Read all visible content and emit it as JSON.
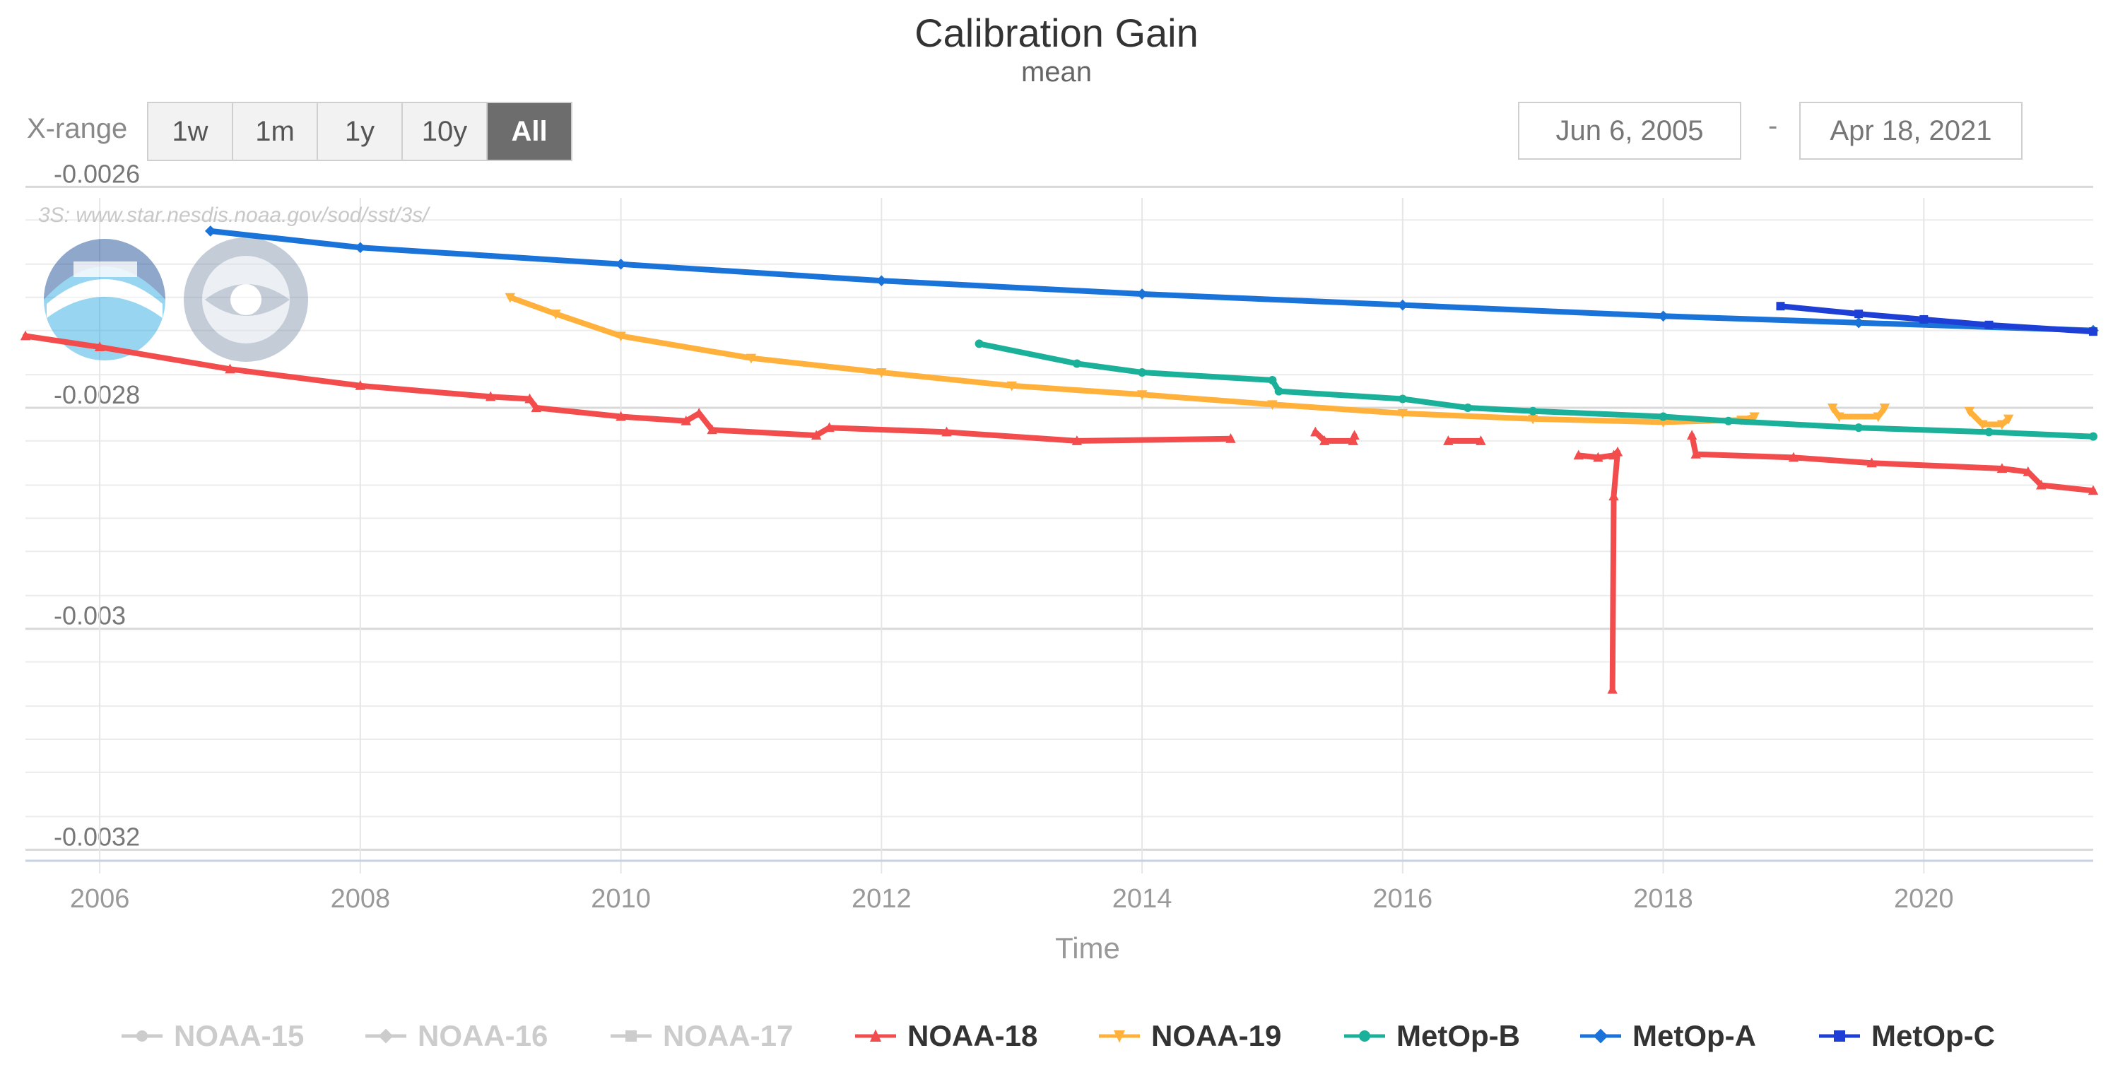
{
  "chart_data": {
    "type": "line",
    "title": "Calibration Gain",
    "subtitle": "mean",
    "xlabel": "Time",
    "ylabel": "",
    "xlim": [
      2005.43,
      2021.3
    ],
    "ylim": [
      -0.00321,
      -0.00261
    ],
    "x_ticks": [
      {
        "v": 2006,
        "label": "2006"
      },
      {
        "v": 2008,
        "label": "2008"
      },
      {
        "v": 2010,
        "label": "2010"
      },
      {
        "v": 2012,
        "label": "2012"
      },
      {
        "v": 2014,
        "label": "2014"
      },
      {
        "v": 2016,
        "label": "2016"
      },
      {
        "v": 2018,
        "label": "2018"
      },
      {
        "v": 2020,
        "label": "2020"
      }
    ],
    "y_ticks": [
      {
        "v": -0.0026,
        "label": "-0.0026"
      },
      {
        "v": -0.0028,
        "label": "-0.0028"
      },
      {
        "v": -0.003,
        "label": "-0.003"
      },
      {
        "v": -0.0032,
        "label": "-0.0032"
      }
    ],
    "y_minor_ticks": [
      -0.00257,
      -0.00263,
      -0.00267,
      -0.0027,
      -0.00273,
      -0.00277,
      -0.00283,
      -0.00287,
      -0.0029,
      -0.00293,
      -0.00297,
      -0.00303,
      -0.00307,
      -0.0031,
      -0.00313,
      -0.00317
    ],
    "watermark": "3S: www.star.nesdis.noaa.gov/sod/sst/3s/",
    "series": [
      {
        "name": "NOAA-15",
        "visible": false,
        "color": "#cccccc",
        "marker": "circle",
        "segments": []
      },
      {
        "name": "NOAA-16",
        "visible": false,
        "color": "#cccccc",
        "marker": "diamond",
        "segments": []
      },
      {
        "name": "NOAA-17",
        "visible": false,
        "color": "#cccccc",
        "marker": "square",
        "segments": []
      },
      {
        "name": "NOAA-18",
        "visible": true,
        "color": "#f24c4c",
        "marker": "triangle",
        "segments": [
          [
            [
              2005.43,
              -0.002735
            ],
            [
              2006,
              -0.002745
            ],
            [
              2007,
              -0.002765
            ],
            [
              2008,
              -0.00278
            ],
            [
              2009,
              -0.00279
            ],
            [
              2009.3,
              -0.002792
            ],
            [
              2009.35,
              -0.0028
            ],
            [
              2010,
              -0.002808
            ],
            [
              2010.5,
              -0.002812
            ],
            [
              2010.6,
              -0.002805
            ],
            [
              2010.7,
              -0.00282
            ],
            [
              2011.5,
              -0.002825
            ],
            [
              2011.6,
              -0.002818
            ],
            [
              2012.5,
              -0.002822
            ],
            [
              2013.5,
              -0.00283
            ],
            [
              2014.68,
              -0.002828
            ]
          ],
          [
            [
              2015.33,
              -0.002822
            ],
            [
              2015.4,
              -0.00283
            ],
            [
              2015.62,
              -0.00283
            ],
            [
              2015.63,
              -0.002825
            ]
          ],
          [
            [
              2016.35,
              -0.00283
            ],
            [
              2016.6,
              -0.00283
            ]
          ],
          [
            [
              2017.35,
              -0.002843
            ],
            [
              2017.5,
              -0.002845
            ],
            [
              2017.62,
              -0.002843
            ],
            [
              2017.65,
              -0.00284
            ],
            [
              2017.62,
              -0.00288
            ],
            [
              2017.61,
              -0.003055
            ]
          ],
          [
            [
              2018.22,
              -0.002825
            ],
            [
              2018.25,
              -0.002842
            ],
            [
              2019,
              -0.002845
            ],
            [
              2019.6,
              -0.00285
            ],
            [
              2020.6,
              -0.002855
            ],
            [
              2020.8,
              -0.002858
            ],
            [
              2020.9,
              -0.00287
            ],
            [
              2021.3,
              -0.002875
            ]
          ]
        ]
      },
      {
        "name": "NOAA-19",
        "visible": true,
        "color": "#ffb13c",
        "marker": "triangle-down",
        "segments": [
          [
            [
              2009.15,
              -0.0027
            ],
            [
              2009.5,
              -0.002715
            ],
            [
              2010,
              -0.002735
            ],
            [
              2011,
              -0.002755
            ],
            [
              2012,
              -0.002768
            ],
            [
              2013,
              -0.00278
            ],
            [
              2014,
              -0.002788
            ],
            [
              2015,
              -0.002797
            ],
            [
              2016,
              -0.002805
            ],
            [
              2017,
              -0.00281
            ],
            [
              2018,
              -0.002813
            ],
            [
              2018.6,
              -0.002811
            ],
            [
              2018.7,
              -0.002808
            ]
          ],
          [
            [
              2019.3,
              -0.0028
            ],
            [
              2019.35,
              -0.002808
            ],
            [
              2019.65,
              -0.002808
            ],
            [
              2019.7,
              -0.0028
            ]
          ],
          [
            [
              2020.35,
              -0.002803
            ],
            [
              2020.45,
              -0.002815
            ],
            [
              2020.6,
              -0.002815
            ],
            [
              2020.65,
              -0.00281
            ]
          ]
        ]
      },
      {
        "name": "MetOp-B",
        "visible": true,
        "color": "#1ab09a",
        "marker": "circle",
        "segments": [
          [
            [
              2012.75,
              -0.002742
            ],
            [
              2013.5,
              -0.00276
            ],
            [
              2014,
              -0.002768
            ],
            [
              2015,
              -0.002775
            ],
            [
              2015.05,
              -0.002785
            ],
            [
              2016,
              -0.002792
            ],
            [
              2016.5,
              -0.0028
            ],
            [
              2017,
              -0.002803
            ],
            [
              2018,
              -0.002808
            ],
            [
              2018.5,
              -0.002812
            ],
            [
              2019.5,
              -0.002818
            ],
            [
              2020.5,
              -0.002822
            ],
            [
              2021.3,
              -0.002826
            ]
          ]
        ]
      },
      {
        "name": "MetOp-A",
        "visible": true,
        "color": "#1a73d9",
        "marker": "diamond",
        "segments": [
          [
            [
              2006.85,
              -0.00264
            ],
            [
              2008,
              -0.002655
            ],
            [
              2010,
              -0.00267
            ],
            [
              2012,
              -0.002685
            ],
            [
              2014,
              -0.002697
            ],
            [
              2016,
              -0.002707
            ],
            [
              2018,
              -0.002717
            ],
            [
              2019.5,
              -0.002723
            ],
            [
              2021.3,
              -0.00273
            ]
          ]
        ]
      },
      {
        "name": "MetOp-C",
        "visible": true,
        "color": "#1e3fd6",
        "marker": "square",
        "segments": [
          [
            [
              2018.9,
              -0.002708
            ],
            [
              2019.5,
              -0.002715
            ],
            [
              2020,
              -0.00272
            ],
            [
              2020.5,
              -0.002725
            ],
            [
              2021.3,
              -0.002731
            ]
          ]
        ]
      }
    ]
  },
  "controls": {
    "range_label": "X-range",
    "range_buttons": [
      "1w",
      "1m",
      "1y",
      "10y",
      "All"
    ],
    "date_from": "Jun 6, 2005",
    "date_sep": "-",
    "date_to": "Apr 18, 2021"
  }
}
